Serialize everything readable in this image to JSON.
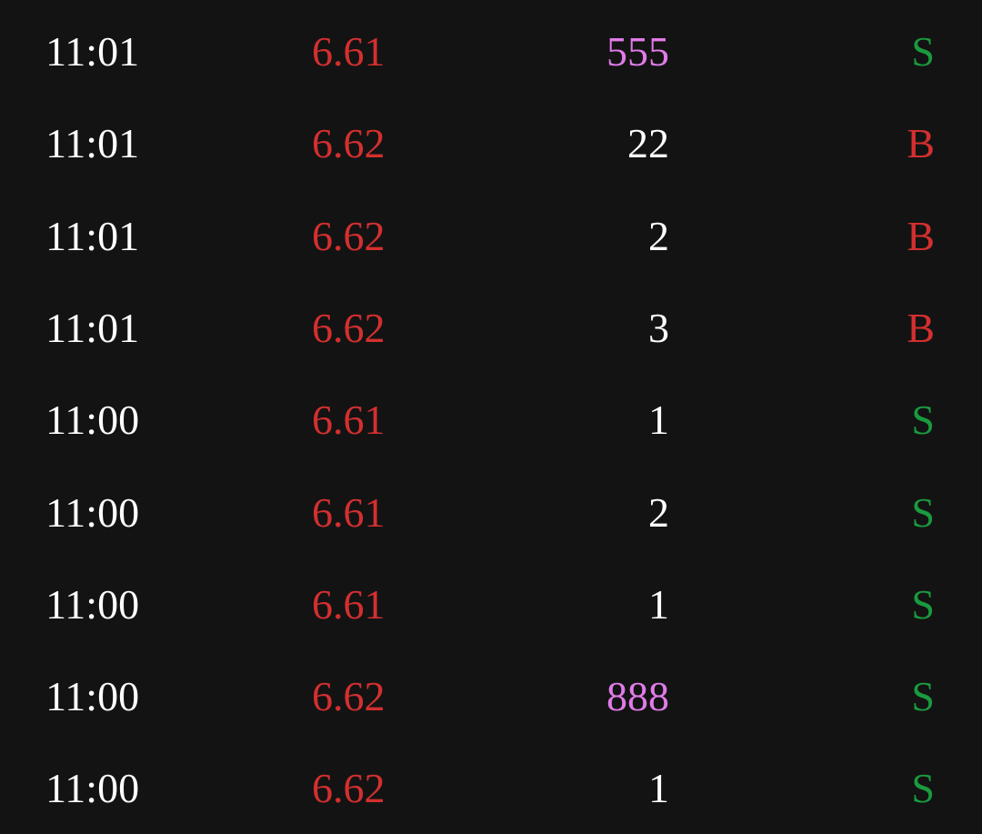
{
  "colors": {
    "background": "#131313",
    "time": "#ffffff",
    "price_up": "#d42f2f",
    "volume_normal": "#ffffff",
    "volume_large": "#e07be8",
    "buy": "#d42f2f",
    "sell": "#1a9a3e"
  },
  "trades": [
    {
      "time": "11:01",
      "price": "6.61",
      "volume": "555",
      "large": true,
      "side": "S"
    },
    {
      "time": "11:01",
      "price": "6.62",
      "volume": "22",
      "large": false,
      "side": "B"
    },
    {
      "time": "11:01",
      "price": "6.62",
      "volume": "2",
      "large": false,
      "side": "B"
    },
    {
      "time": "11:01",
      "price": "6.62",
      "volume": "3",
      "large": false,
      "side": "B"
    },
    {
      "time": "11:00",
      "price": "6.61",
      "volume": "1",
      "large": false,
      "side": "S"
    },
    {
      "time": "11:00",
      "price": "6.61",
      "volume": "2",
      "large": false,
      "side": "S"
    },
    {
      "time": "11:00",
      "price": "6.61",
      "volume": "1",
      "large": false,
      "side": "S"
    },
    {
      "time": "11:00",
      "price": "6.62",
      "volume": "888",
      "large": true,
      "side": "S"
    },
    {
      "time": "11:00",
      "price": "6.62",
      "volume": "1",
      "large": false,
      "side": "S"
    }
  ]
}
